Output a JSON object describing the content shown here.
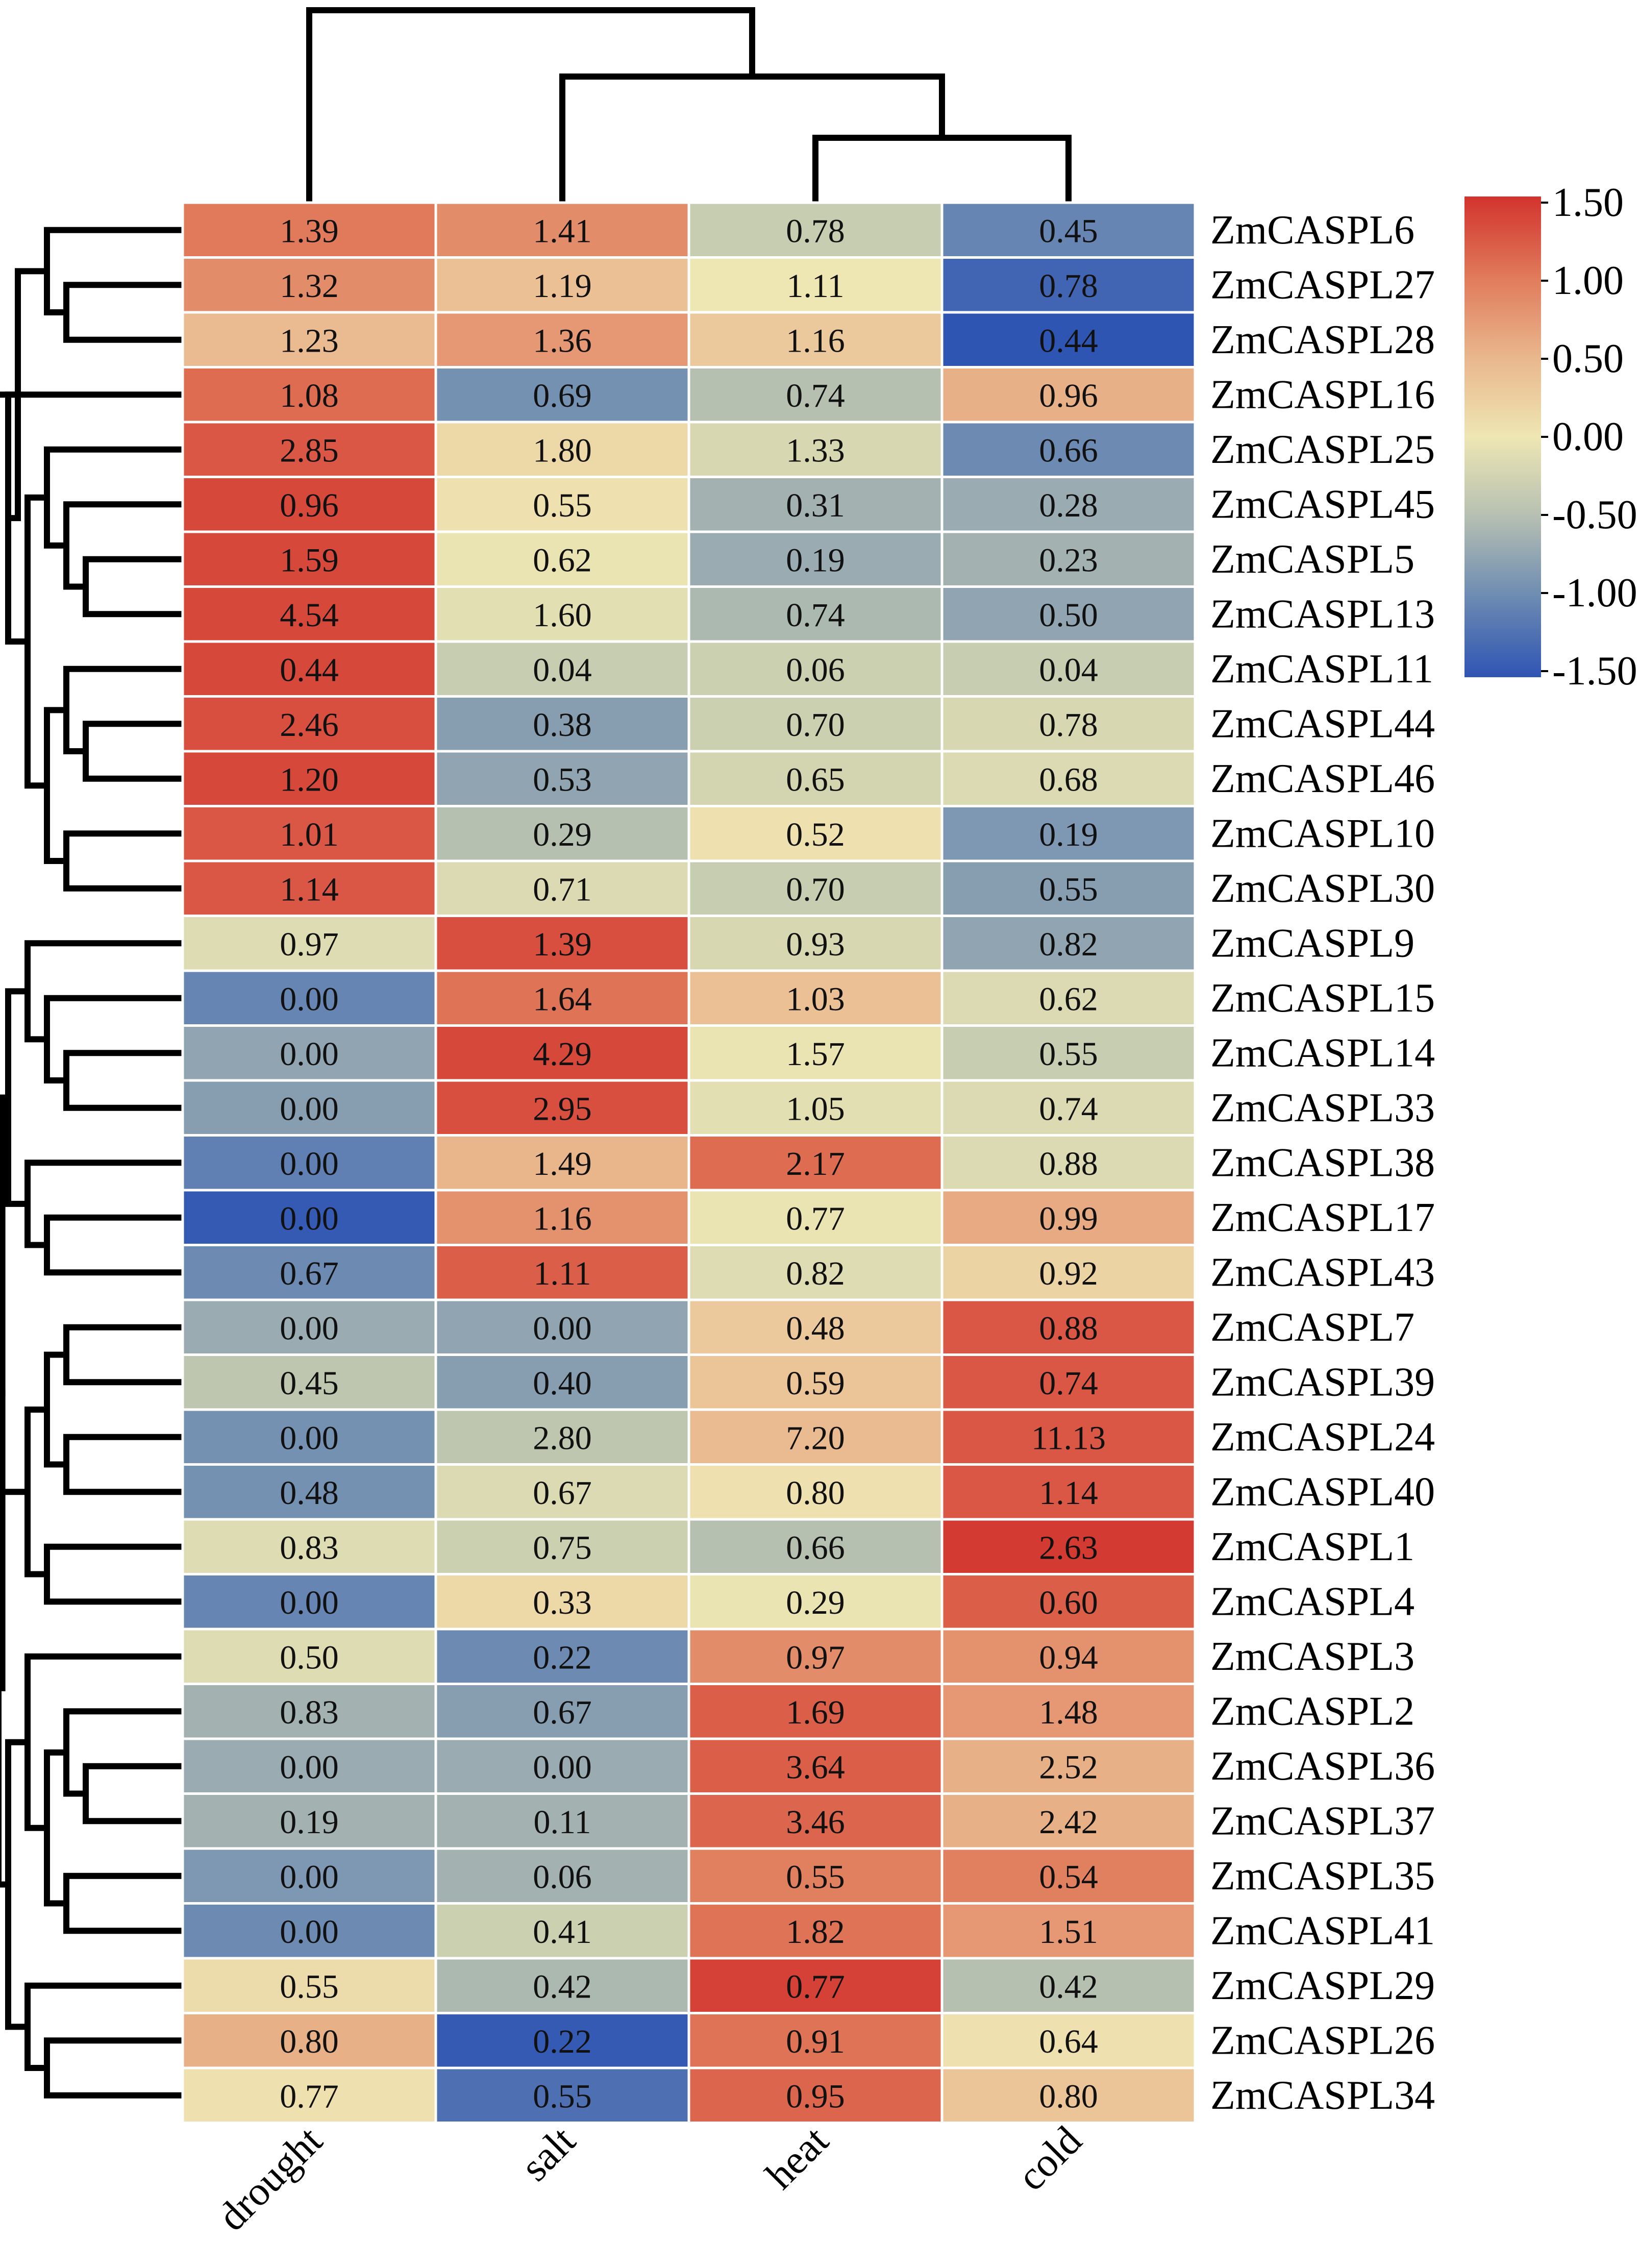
{
  "chart_data": {
    "type": "heatmap",
    "title": "",
    "columns": [
      "drought",
      "salt",
      "heat",
      "cold"
    ],
    "rows": [
      "ZmCASPL6",
      "ZmCASPL27",
      "ZmCASPL28",
      "ZmCASPL16",
      "ZmCASPL25",
      "ZmCASPL45",
      "ZmCASPL5",
      "ZmCASPL13",
      "ZmCASPL11",
      "ZmCASPL44",
      "ZmCASPL46",
      "ZmCASPL10",
      "ZmCASPL30",
      "ZmCASPL9",
      "ZmCASPL15",
      "ZmCASPL14",
      "ZmCASPL33",
      "ZmCASPL38",
      "ZmCASPL17",
      "ZmCASPL43",
      "ZmCASPL7",
      "ZmCASPL39",
      "ZmCASPL24",
      "ZmCASPL40",
      "ZmCASPL1",
      "ZmCASPL4",
      "ZmCASPL3",
      "ZmCASPL2",
      "ZmCASPL36",
      "ZmCASPL37",
      "ZmCASPL35",
      "ZmCASPL41",
      "ZmCASPL29",
      "ZmCASPL26",
      "ZmCASPL34"
    ],
    "labels": [
      [
        "1.39",
        "1.41",
        "0.78",
        "0.45"
      ],
      [
        "1.32",
        "1.19",
        "1.11",
        "0.78"
      ],
      [
        "1.23",
        "1.36",
        "1.16",
        "0.44"
      ],
      [
        "1.08",
        "0.69",
        "0.74",
        "0.96"
      ],
      [
        "2.85",
        "1.80",
        "1.33",
        "0.66"
      ],
      [
        "0.96",
        "0.55",
        "0.31",
        "0.28"
      ],
      [
        "1.59",
        "0.62",
        "0.19",
        "0.23"
      ],
      [
        "4.54",
        "1.60",
        "0.74",
        "0.50"
      ],
      [
        "0.44",
        "0.04",
        "0.06",
        "0.04"
      ],
      [
        "2.46",
        "0.38",
        "0.70",
        "0.78"
      ],
      [
        "1.20",
        "0.53",
        "0.65",
        "0.68"
      ],
      [
        "1.01",
        "0.29",
        "0.52",
        "0.19"
      ],
      [
        "1.14",
        "0.71",
        "0.70",
        "0.55"
      ],
      [
        "0.97",
        "1.39",
        "0.93",
        "0.82"
      ],
      [
        "0.00",
        "1.64",
        "1.03",
        "0.62"
      ],
      [
        "0.00",
        "4.29",
        "1.57",
        "0.55"
      ],
      [
        "0.00",
        "2.95",
        "1.05",
        "0.74"
      ],
      [
        "0.00",
        "1.49",
        "2.17",
        "0.88"
      ],
      [
        "0.00",
        "1.16",
        "0.77",
        "0.99"
      ],
      [
        "0.67",
        "1.11",
        "0.82",
        "0.92"
      ],
      [
        "0.00",
        "0.00",
        "0.48",
        "0.88"
      ],
      [
        "0.45",
        "0.40",
        "0.59",
        "0.74"
      ],
      [
        "0.00",
        "2.80",
        "7.20",
        "11.13"
      ],
      [
        "0.48",
        "0.67",
        "0.80",
        "1.14"
      ],
      [
        "0.83",
        "0.75",
        "0.66",
        "2.63"
      ],
      [
        "0.00",
        "0.33",
        "0.29",
        "0.60"
      ],
      [
        "0.50",
        "0.22",
        "0.97",
        "0.94"
      ],
      [
        "0.83",
        "0.67",
        "1.69",
        "1.48"
      ],
      [
        "0.00",
        "0.00",
        "3.64",
        "2.52"
      ],
      [
        "0.19",
        "0.11",
        "3.46",
        "2.42"
      ],
      [
        "0.00",
        "0.06",
        "0.55",
        "0.54"
      ],
      [
        "0.00",
        "0.41",
        "1.82",
        "1.51"
      ],
      [
        "0.55",
        "0.42",
        "0.77",
        "0.42"
      ],
      [
        "0.80",
        "0.22",
        "0.91",
        "0.64"
      ],
      [
        "0.77",
        "0.55",
        "0.95",
        "0.80"
      ]
    ],
    "z": [
      [
        1.0,
        0.85,
        -0.5,
        -1.05
      ],
      [
        0.85,
        0.4,
        0.0,
        -1.35
      ],
      [
        0.45,
        0.75,
        0.3,
        -1.5
      ],
      [
        1.1,
        -0.95,
        -0.6,
        0.55
      ],
      [
        1.25,
        0.15,
        -0.3,
        -1.0
      ],
      [
        1.35,
        0.05,
        -0.7,
        -0.75
      ],
      [
        1.35,
        -0.05,
        -0.75,
        -0.7
      ],
      [
        1.35,
        -0.15,
        -0.65,
        -0.8
      ],
      [
        1.35,
        -0.5,
        -0.45,
        -0.5
      ],
      [
        1.3,
        -0.85,
        -0.45,
        -0.3
      ],
      [
        1.35,
        -0.8,
        -0.35,
        -0.25
      ],
      [
        1.25,
        -0.6,
        0.05,
        -0.9
      ],
      [
        1.25,
        -0.25,
        -0.5,
        -0.85
      ],
      [
        -0.2,
        1.3,
        -0.3,
        -0.8
      ],
      [
        -1.05,
        1.05,
        0.4,
        -0.25
      ],
      [
        -0.8,
        1.35,
        -0.05,
        -0.5
      ],
      [
        -0.85,
        1.3,
        -0.15,
        -0.25
      ],
      [
        -1.1,
        0.5,
        1.1,
        -0.25
      ],
      [
        -1.45,
        0.8,
        -0.05,
        0.6
      ],
      [
        -1.0,
        1.2,
        -0.2,
        0.2
      ],
      [
        -0.75,
        -0.8,
        0.3,
        1.25
      ],
      [
        -0.55,
        -0.85,
        0.35,
        1.25
      ],
      [
        -0.95,
        -0.55,
        0.45,
        1.25
      ],
      [
        -0.95,
        -0.25,
        0.05,
        1.25
      ],
      [
        -0.2,
        -0.45,
        -0.6,
        1.45
      ],
      [
        -1.05,
        0.15,
        -0.05,
        1.2
      ],
      [
        -0.2,
        -1.0,
        0.85,
        0.8
      ],
      [
        -0.7,
        -0.85,
        1.2,
        0.75
      ],
      [
        -0.75,
        -0.75,
        1.2,
        0.55
      ],
      [
        -0.7,
        -0.7,
        1.15,
        0.55
      ],
      [
        -0.9,
        -0.7,
        0.95,
        0.95
      ],
      [
        -1.0,
        -0.45,
        1.05,
        0.75
      ],
      [
        0.1,
        -0.65,
        1.4,
        -0.6
      ],
      [
        0.55,
        -1.45,
        1.05,
        0.05
      ],
      [
        0.05,
        -1.25,
        1.15,
        0.35
      ]
    ],
    "colorbar": {
      "ticks": [
        "1.50",
        "1.00",
        "0.50",
        "0.00",
        "-0.50",
        "-1.00",
        "-1.50"
      ],
      "range": [
        -1.5,
        1.5
      ],
      "colors": [
        "#2f55b3",
        "#6c8ab2",
        "#c7cdb0",
        "#eee6b3",
        "#e9b68c",
        "#e07a5a",
        "#d2332d"
      ]
    }
  }
}
